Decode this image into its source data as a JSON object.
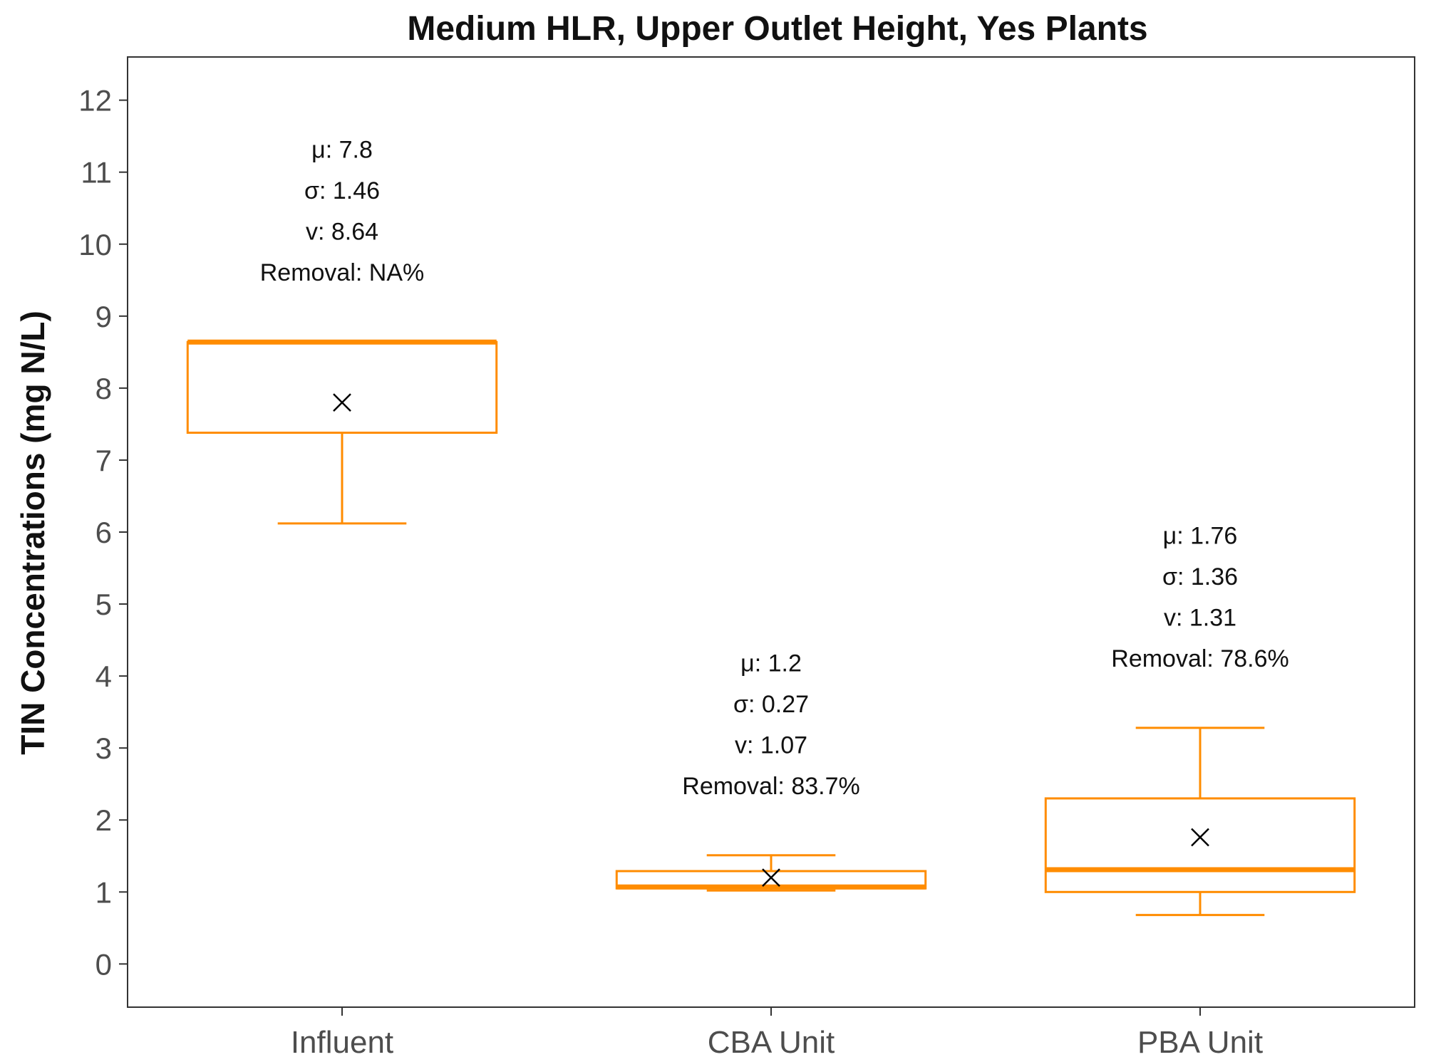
{
  "chart_data": {
    "type": "box",
    "title": "Medium HLR, Upper Outlet Height, Yes Plants",
    "xlabel": "",
    "ylabel": "TIN Concentrations (mg N/L)",
    "ylim": [
      -0.6,
      12.6
    ],
    "yticks": [
      "0",
      "1",
      "2",
      "3",
      "4",
      "5",
      "6",
      "7",
      "8",
      "9",
      "10",
      "11",
      "12"
    ],
    "grid": false,
    "categories": [
      "Influent",
      "CBA Unit",
      "PBA Unit"
    ],
    "colors": {
      "box": "#ff8c00",
      "mean_marker": "#000000",
      "frame": "#333333"
    },
    "boxes": [
      {
        "category": "Influent",
        "whisker_low": 6.12,
        "q1": 7.38,
        "median": 8.64,
        "q3": 8.64,
        "whisker_high": 8.64,
        "mean": 7.8,
        "labels": [
          "μ: 7.8",
          "σ: 1.46",
          "v: 8.64",
          "Removal: NA%"
        ]
      },
      {
        "category": "CBA Unit",
        "whisker_low": 1.02,
        "q1": 1.05,
        "median": 1.07,
        "q3": 1.29,
        "whisker_high": 1.51,
        "mean": 1.2,
        "labels": [
          "μ: 1.2",
          "σ: 0.27",
          "v: 1.07",
          "Removal: 83.7%"
        ]
      },
      {
        "category": "PBA Unit",
        "whisker_low": 0.68,
        "q1": 1.0,
        "median": 1.31,
        "q3": 2.3,
        "whisker_high": 3.28,
        "mean": 1.76,
        "labels": [
          "μ: 1.76",
          "σ: 1.36",
          "v: 1.31",
          "Removal: 78.6%"
        ]
      }
    ]
  }
}
